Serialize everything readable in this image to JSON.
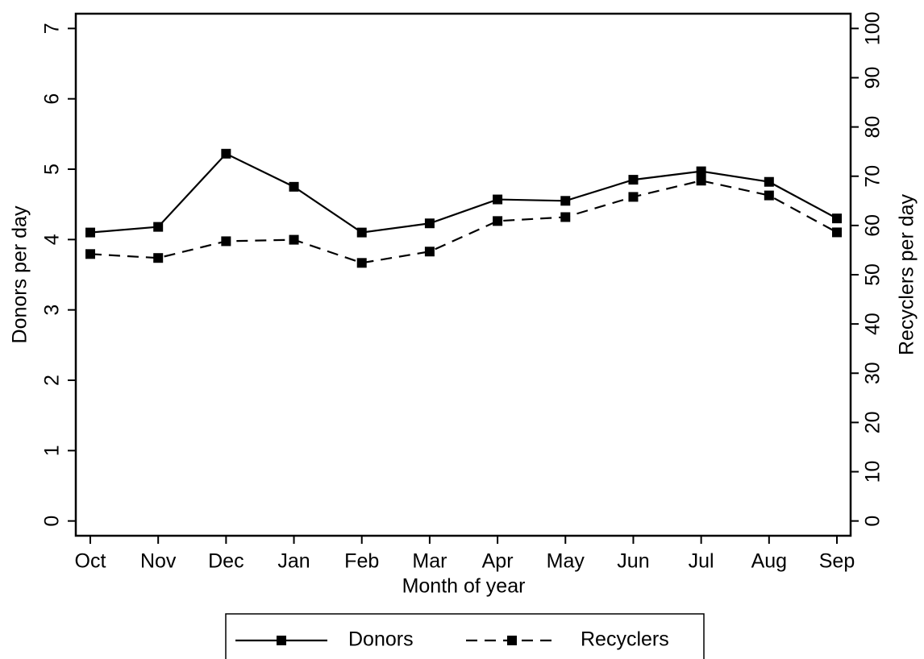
{
  "chart_data": {
    "type": "line",
    "x_label": "Month of year",
    "y_label": "Donors per day",
    "y2_label": "Recyclers per day",
    "categories": [
      "Oct",
      "Nov",
      "Dec",
      "Jan",
      "Feb",
      "Mar",
      "Apr",
      "May",
      "Jun",
      "Jul",
      "Aug",
      "Sep"
    ],
    "series": [
      {
        "name": "Donors",
        "color": "#000000",
        "style": "solid",
        "axis": "y",
        "values": [
          4.1,
          4.18,
          5.22,
          4.75,
          4.1,
          4.23,
          4.57,
          4.55,
          4.85,
          4.97,
          4.82,
          4.3
        ]
      },
      {
        "name": "Recyclers",
        "color": "#000000",
        "style": "dashed",
        "axis": "y2",
        "values": [
          54.2,
          53.4,
          56.8,
          57.1,
          52.4,
          54.7,
          60.9,
          61.7,
          65.8,
          69.1,
          66.1,
          58.6
        ]
      }
    ],
    "ylim": [
      -0.21,
      7.21
    ],
    "yticks": [
      0,
      1,
      2,
      3,
      4,
      5,
      6,
      7
    ],
    "y2lim": [
      -3,
      103
    ],
    "y2ticks": [
      0,
      10,
      20,
      30,
      40,
      50,
      60,
      70,
      80,
      90,
      100
    ],
    "grid": false,
    "legend": "bottom"
  }
}
